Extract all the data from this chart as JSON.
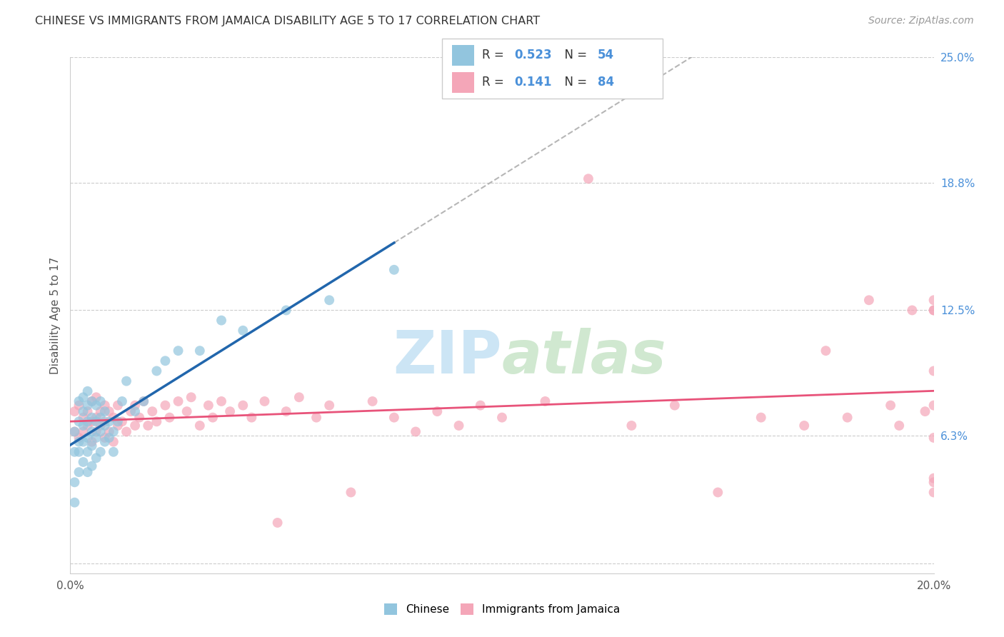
{
  "title": "CHINESE VS IMMIGRANTS FROM JAMAICA DISABILITY AGE 5 TO 17 CORRELATION CHART",
  "source": "Source: ZipAtlas.com",
  "ylabel": "Disability Age 5 to 17",
  "xlim": [
    0.0,
    0.2
  ],
  "ylim": [
    -0.005,
    0.25
  ],
  "ytick_positions": [
    0.0,
    0.063,
    0.125,
    0.188,
    0.25
  ],
  "ytick_labels_right": [
    "",
    "6.3%",
    "12.5%",
    "18.8%",
    "25.0%"
  ],
  "blue_color": "#92c5de",
  "pink_color": "#f4a6b8",
  "line_blue": "#2166ac",
  "line_pink": "#e8537a",
  "label1": "Chinese",
  "label2": "Immigrants from Jamaica",
  "chinese_x": [
    0.001,
    0.001,
    0.001,
    0.001,
    0.002,
    0.002,
    0.002,
    0.002,
    0.002,
    0.003,
    0.003,
    0.003,
    0.003,
    0.003,
    0.004,
    0.004,
    0.004,
    0.004,
    0.004,
    0.004,
    0.005,
    0.005,
    0.005,
    0.005,
    0.005,
    0.006,
    0.006,
    0.006,
    0.006,
    0.007,
    0.007,
    0.007,
    0.007,
    0.008,
    0.008,
    0.008,
    0.009,
    0.009,
    0.01,
    0.01,
    0.011,
    0.012,
    0.013,
    0.015,
    0.017,
    0.02,
    0.022,
    0.025,
    0.03,
    0.035,
    0.04,
    0.05,
    0.06,
    0.075
  ],
  "chinese_y": [
    0.03,
    0.04,
    0.055,
    0.065,
    0.045,
    0.055,
    0.06,
    0.07,
    0.08,
    0.05,
    0.06,
    0.068,
    0.075,
    0.082,
    0.045,
    0.055,
    0.062,
    0.07,
    0.078,
    0.085,
    0.048,
    0.058,
    0.065,
    0.072,
    0.08,
    0.052,
    0.062,
    0.07,
    0.078,
    0.055,
    0.065,
    0.072,
    0.08,
    0.06,
    0.068,
    0.075,
    0.062,
    0.07,
    0.055,
    0.065,
    0.07,
    0.08,
    0.09,
    0.075,
    0.08,
    0.095,
    0.1,
    0.105,
    0.105,
    0.12,
    0.115,
    0.125,
    0.13,
    0.145
  ],
  "jamaica_x": [
    0.001,
    0.001,
    0.002,
    0.002,
    0.003,
    0.003,
    0.004,
    0.004,
    0.005,
    0.005,
    0.005,
    0.006,
    0.006,
    0.006,
    0.007,
    0.007,
    0.008,
    0.008,
    0.008,
    0.009,
    0.009,
    0.01,
    0.01,
    0.011,
    0.011,
    0.012,
    0.013,
    0.014,
    0.015,
    0.015,
    0.016,
    0.017,
    0.018,
    0.019,
    0.02,
    0.022,
    0.023,
    0.025,
    0.027,
    0.028,
    0.03,
    0.032,
    0.033,
    0.035,
    0.037,
    0.04,
    0.042,
    0.045,
    0.048,
    0.05,
    0.053,
    0.057,
    0.06,
    0.065,
    0.07,
    0.075,
    0.08,
    0.085,
    0.09,
    0.095,
    0.1,
    0.11,
    0.12,
    0.13,
    0.14,
    0.15,
    0.16,
    0.17,
    0.175,
    0.18,
    0.185,
    0.19,
    0.192,
    0.195,
    0.198,
    0.2,
    0.2,
    0.2,
    0.2,
    0.2,
    0.2,
    0.2,
    0.2,
    0.2
  ],
  "jamaica_y": [
    0.065,
    0.075,
    0.062,
    0.078,
    0.065,
    0.072,
    0.068,
    0.075,
    0.06,
    0.07,
    0.08,
    0.065,
    0.072,
    0.082,
    0.068,
    0.075,
    0.062,
    0.07,
    0.078,
    0.065,
    0.075,
    0.06,
    0.072,
    0.068,
    0.078,
    0.07,
    0.065,
    0.075,
    0.068,
    0.078,
    0.072,
    0.08,
    0.068,
    0.075,
    0.07,
    0.078,
    0.072,
    0.08,
    0.075,
    0.082,
    0.068,
    0.078,
    0.072,
    0.08,
    0.075,
    0.078,
    0.072,
    0.08,
    0.02,
    0.075,
    0.082,
    0.072,
    0.078,
    0.035,
    0.08,
    0.072,
    0.065,
    0.075,
    0.068,
    0.078,
    0.072,
    0.08,
    0.19,
    0.068,
    0.078,
    0.035,
    0.072,
    0.068,
    0.105,
    0.072,
    0.13,
    0.078,
    0.068,
    0.125,
    0.075,
    0.04,
    0.095,
    0.13,
    0.062,
    0.125,
    0.078,
    0.042,
    0.035,
    0.125
  ]
}
